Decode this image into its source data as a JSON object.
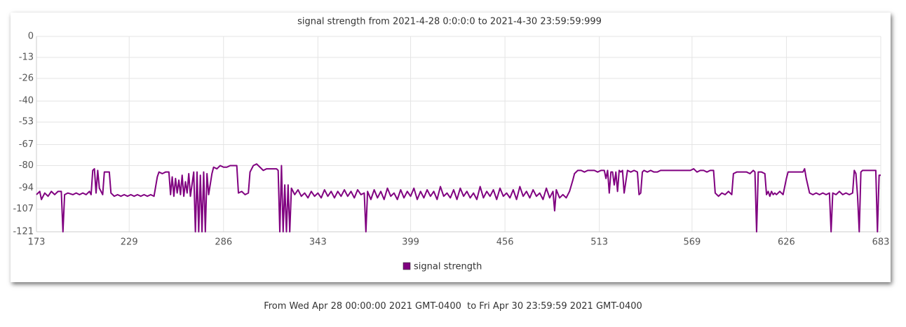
{
  "chart_data": {
    "type": "line",
    "title": "signal strength from 2021-4-28 0:0:0:0 to 2021-4-30 23:59:59:999",
    "x": [
      173,
      175,
      176,
      178,
      180,
      182,
      184,
      186,
      188,
      189,
      190,
      192,
      195,
      197,
      199,
      201,
      203,
      205,
      206,
      207,
      208,
      209,
      210,
      211,
      213,
      214,
      217,
      218,
      220,
      222,
      224,
      226,
      228,
      230,
      232,
      234,
      236,
      238,
      240,
      242,
      244,
      246,
      247,
      249,
      251,
      253,
      254,
      255,
      256,
      257,
      258,
      259,
      260,
      261,
      262,
      263,
      264,
      265,
      266,
      268,
      269,
      270,
      271,
      272,
      273,
      274,
      275,
      276,
      277,
      279,
      280,
      282,
      284,
      286,
      288,
      290,
      292,
      294,
      295,
      297,
      299,
      301,
      302,
      304,
      306,
      308,
      310,
      312,
      314,
      316,
      318,
      319,
      320,
      321,
      322,
      323,
      324,
      325,
      326,
      327,
      329,
      331,
      333,
      335,
      337,
      339,
      341,
      343,
      345,
      347,
      349,
      351,
      353,
      355,
      357,
      359,
      361,
      363,
      365,
      367,
      369,
      371,
      372,
      373,
      375,
      377,
      379,
      381,
      383,
      385,
      387,
      389,
      391,
      393,
      395,
      397,
      399,
      401,
      403,
      405,
      407,
      409,
      411,
      413,
      415,
      417,
      419,
      421,
      423,
      425,
      427,
      429,
      431,
      433,
      435,
      437,
      439,
      441,
      443,
      445,
      447,
      449,
      451,
      453,
      455,
      457,
      459,
      461,
      463,
      465,
      467,
      469,
      471,
      473,
      475,
      477,
      479,
      481,
      483,
      485,
      486,
      487,
      489,
      491,
      493,
      495,
      497,
      498,
      500,
      502,
      504,
      506,
      508,
      510,
      512,
      514,
      516,
      517,
      518,
      519,
      520,
      521,
      522,
      523,
      524,
      525,
      526,
      527,
      528,
      530,
      532,
      534,
      536,
      537,
      538,
      539,
      540,
      542,
      544,
      546,
      548,
      550,
      552,
      554,
      556,
      558,
      560,
      562,
      564,
      566,
      568,
      570,
      572,
      574,
      576,
      578,
      580,
      582,
      583,
      585,
      587,
      589,
      591,
      593,
      594,
      596,
      598,
      600,
      602,
      604,
      606,
      607,
      608,
      609,
      611,
      613,
      614,
      615,
      616,
      617,
      618,
      619,
      620,
      622,
      624,
      626,
      627,
      628,
      630,
      632,
      634,
      636,
      637,
      638,
      640,
      642,
      644,
      646,
      648,
      650,
      652,
      653,
      654,
      656,
      658,
      660,
      662,
      664,
      666,
      667,
      668,
      669,
      670,
      671,
      672,
      674,
      676,
      678,
      680,
      681,
      682,
      683
    ],
    "series": [
      {
        "name": "signal strength",
        "color": "#800080",
        "values": [
          -98,
          -96,
          -101,
          -97,
          -99,
          -96,
          -98,
          -96,
          -96,
          -121,
          -98,
          -97,
          -98,
          -97,
          -98,
          -97,
          -98,
          -96,
          -98,
          -83,
          -82,
          -97,
          -83,
          -94,
          -98,
          -84,
          -84,
          -97,
          -99,
          -98,
          -99,
          -98,
          -99,
          -98,
          -99,
          -98,
          -99,
          -98,
          -99,
          -98,
          -99,
          -87,
          -84,
          -85,
          -84,
          -84,
          -98,
          -87,
          -99,
          -88,
          -97,
          -89,
          -98,
          -86,
          -99,
          -90,
          -97,
          -85,
          -99,
          -84,
          -121,
          -84,
          -121,
          -86,
          -121,
          -84,
          -121,
          -85,
          -98,
          -85,
          -81,
          -82,
          -80,
          -81,
          -81,
          -80,
          -80,
          -80,
          -97,
          -96,
          -98,
          -97,
          -84,
          -80,
          -79,
          -81,
          -83,
          -82,
          -82,
          -82,
          -82,
          -83,
          -121,
          -80,
          -121,
          -92,
          -121,
          -92,
          -121,
          -94,
          -98,
          -95,
          -99,
          -97,
          -100,
          -96,
          -99,
          -97,
          -100,
          -95,
          -99,
          -96,
          -100,
          -96,
          -99,
          -95,
          -99,
          -96,
          -100,
          -95,
          -98,
          -97,
          -121,
          -96,
          -101,
          -95,
          -100,
          -96,
          -101,
          -94,
          -99,
          -97,
          -101,
          -95,
          -100,
          -96,
          -99,
          -94,
          -101,
          -96,
          -100,
          -95,
          -99,
          -96,
          -101,
          -93,
          -99,
          -97,
          -100,
          -95,
          -101,
          -94,
          -99,
          -96,
          -100,
          -97,
          -101,
          -93,
          -100,
          -96,
          -99,
          -95,
          -101,
          -94,
          -99,
          -97,
          -100,
          -95,
          -101,
          -93,
          -99,
          -96,
          -100,
          -95,
          -99,
          -97,
          -101,
          -94,
          -100,
          -96,
          -108,
          -95,
          -100,
          -98,
          -100,
          -96,
          -89,
          -85,
          -83,
          -83,
          -84,
          -83,
          -83,
          -83,
          -84,
          -83,
          -83,
          -88,
          -83,
          -97,
          -84,
          -84,
          -92,
          -84,
          -96,
          -83,
          -84,
          -83,
          -97,
          -83,
          -84,
          -83,
          -84,
          -98,
          -97,
          -84,
          -83,
          -84,
          -83,
          -84,
          -84,
          -83,
          -83,
          -83,
          -83,
          -83,
          -83,
          -83,
          -83,
          -83,
          -83,
          -82,
          -84,
          -83,
          -83,
          -84,
          -83,
          -83,
          -97,
          -99,
          -97,
          -98,
          -96,
          -98,
          -85,
          -84,
          -84,
          -84,
          -84,
          -85,
          -83,
          -84,
          -121,
          -84,
          -84,
          -85,
          -98,
          -96,
          -99,
          -96,
          -98,
          -97,
          -98,
          -96,
          -98,
          -88,
          -84,
          -84,
          -84,
          -84,
          -84,
          -84,
          -82,
          -88,
          -97,
          -98,
          -97,
          -98,
          -97,
          -98,
          -97,
          -121,
          -97,
          -98,
          -96,
          -98,
          -97,
          -98,
          -97,
          -83,
          -85,
          -99,
          -121,
          -84,
          -83,
          -83,
          -83,
          -83,
          -83,
          -121,
          -86,
          -86
        ]
      }
    ],
    "xlim": [
      173,
      683
    ],
    "xticks": [
      173,
      229,
      286,
      343,
      399,
      456,
      513,
      569,
      626,
      683
    ],
    "ylim": [
      -121,
      0
    ],
    "yticks": [
      0,
      -13,
      -26,
      -40,
      -53,
      -67,
      -80,
      -94,
      -107,
      -121
    ],
    "grid": true
  },
  "footer": "From Wed Apr 28 00:00:00 2021 GMT-0400  to Fri Apr 30 23:59:59 2021 GMT-0400"
}
